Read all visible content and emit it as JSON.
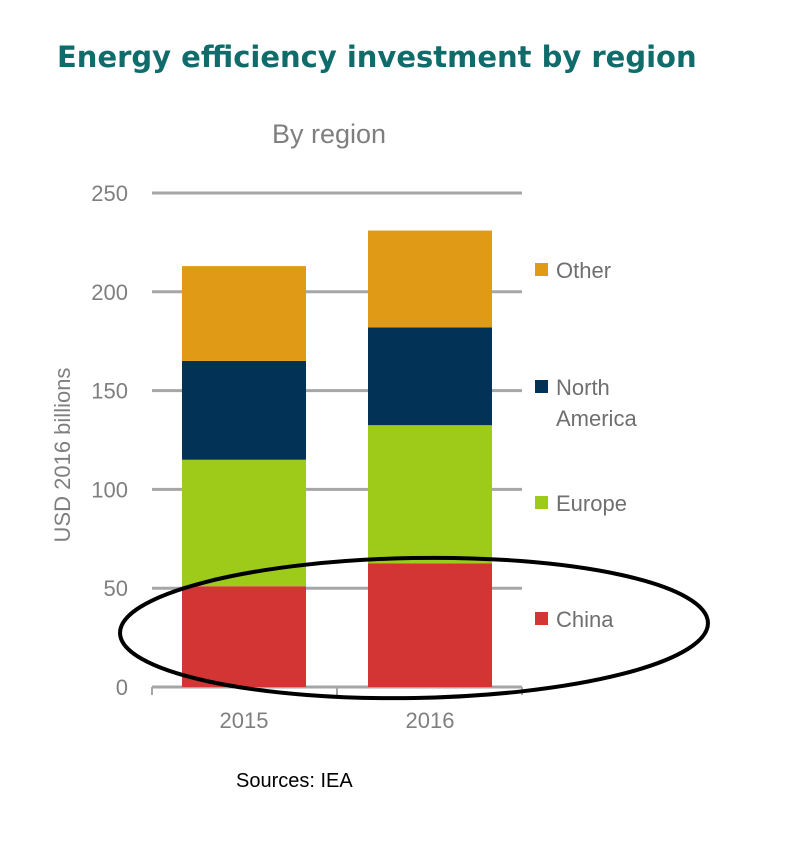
{
  "title": "Energy efficiency investment by region",
  "source": "Sources: IEA",
  "chart_data": {
    "type": "bar",
    "stacked": true,
    "title": "By region",
    "xlabel": "",
    "ylabel": "USD 2016 billions",
    "ylim": [
      0,
      250
    ],
    "yticks": [
      0,
      50,
      100,
      150,
      200,
      250
    ],
    "categories": [
      "2015",
      "2016"
    ],
    "series": [
      {
        "name": "China",
        "color": "#d33535",
        "values": [
          51,
          62.5
        ]
      },
      {
        "name": "Europe",
        "color": "#9ecb1a",
        "values": [
          64,
          70
        ]
      },
      {
        "name": "North America",
        "legend_lines": [
          "North",
          "America"
        ],
        "color": "#023356",
        "values": [
          50,
          49.5
        ]
      },
      {
        "name": "Other",
        "color": "#e09a16",
        "values": [
          48,
          49
        ]
      }
    ],
    "grid": true,
    "legend": "right",
    "annotation": "black ellipse circling the China segments"
  }
}
